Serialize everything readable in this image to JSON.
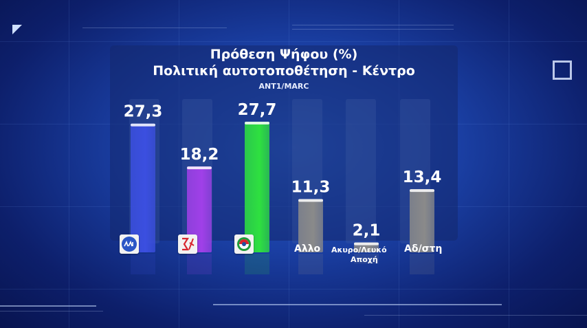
{
  "chart_data": {
    "type": "bar",
    "title": "Πρόθεση Ψήφου (%)",
    "subtitle": "Πολιτική αυτοτοποθέτηση - Κέντρο",
    "source": "ANT1/MARC",
    "categories": [
      "ΝΔ",
      "ΣΥΡΙΖΑ",
      "ΠΑΣΟΚ",
      "Αλλο",
      "Ακυρο/Λευκό Αποχή",
      "Αδ/στη"
    ],
    "values": [
      27.3,
      18.2,
      27.7,
      11.3,
      2.1,
      13.4
    ],
    "value_labels": [
      "27,3",
      "18,2",
      "27,7",
      "11,3",
      "2,1",
      "13,4"
    ],
    "visible_category_labels": [
      "",
      "",
      "",
      "Αλλο",
      "Ακυρο/Λευκό",
      "Αδ/στη"
    ],
    "second_line_labels": [
      "",
      "",
      "",
      "",
      "Αποχή",
      ""
    ],
    "logo_icons": [
      "nd-logo-icon",
      "syriza-logo-icon",
      "pasok-logo-icon",
      "",
      "",
      ""
    ],
    "colors": [
      "#3b4fe0",
      "#a040e8",
      "#2ee040",
      "#8a8a8a",
      "#8a8a8a",
      "#8a8a8a"
    ],
    "ylim": [
      0,
      30
    ],
    "grid": false,
    "legend": "none"
  }
}
